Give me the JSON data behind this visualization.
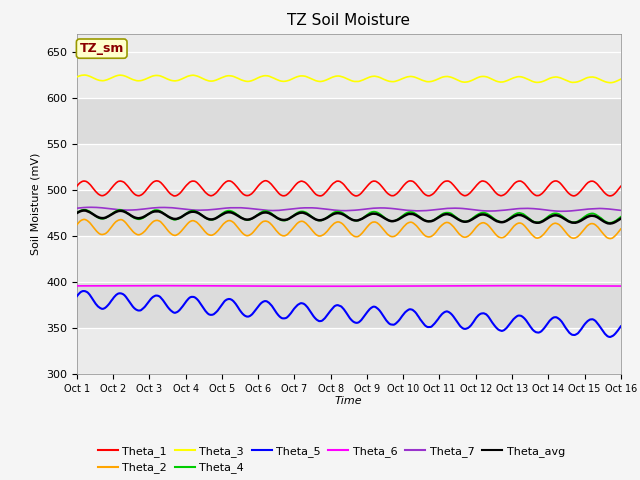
{
  "title": "TZ Soil Moisture",
  "xlabel": "Time",
  "ylabel": "Soil Moisture (mV)",
  "ylim": [
    300,
    670
  ],
  "yticks": [
    300,
    350,
    400,
    450,
    500,
    550,
    600,
    650
  ],
  "x_labels": [
    "Oct 1",
    "Oct 2",
    "Oct 3",
    "Oct 4",
    "Oct 5",
    "Oct 6",
    "Oct 7",
    "Oct 8",
    "Oct 9",
    "Oct 10",
    "Oct 11",
    "Oct 12",
    "Oct 13",
    "Oct 14",
    "Oct 15",
    "Oct 16"
  ],
  "n_points": 720,
  "n_days": 15,
  "annotation_text": "TZ_sm",
  "annotation_color": "#8B0000",
  "annotation_bg": "#FFFFCC",
  "annotation_border": "#999900",
  "plot_bg_light": "#EBEBEB",
  "plot_bg_dark": "#DCDCDC",
  "fig_bg": "#F5F5F5",
  "series": {
    "Theta_1": {
      "color": "#FF0000",
      "base": 502,
      "amp": 8,
      "freq": 1.0,
      "trend": 0.0,
      "noise": 0.8,
      "lw": 1.2
    },
    "Theta_2": {
      "color": "#FFA500",
      "base": 460,
      "amp": 8,
      "freq": 1.0,
      "trend": -0.3,
      "noise": 0.8,
      "lw": 1.2
    },
    "Theta_3": {
      "color": "#FFFF00",
      "base": 622,
      "amp": 3,
      "freq": 1.0,
      "trend": -0.15,
      "noise": 0.5,
      "lw": 1.2
    },
    "Theta_4": {
      "color": "#00CC00",
      "base": 474,
      "amp": 5,
      "freq": 1.0,
      "trend": -0.3,
      "noise": 0.8,
      "lw": 1.2
    },
    "Theta_5": {
      "color": "#0000FF",
      "base": 382,
      "amp": 9,
      "freq": 1.0,
      "trend": -2.2,
      "noise": 1.2,
      "lw": 1.5
    },
    "Theta_6": {
      "color": "#FF00FF",
      "base": 396,
      "amp": 0.3,
      "freq": 0.1,
      "trend": 0.0,
      "noise": 0.05,
      "lw": 1.2
    },
    "Theta_7": {
      "color": "#9933CC",
      "base": 480,
      "amp": 1.5,
      "freq": 0.5,
      "trend": -0.1,
      "noise": 0.2,
      "lw": 1.2
    },
    "Theta_avg": {
      "color": "#000000",
      "base": 474,
      "amp": 4,
      "freq": 1.0,
      "trend": -0.4,
      "noise": 0.6,
      "lw": 1.8
    }
  },
  "series_order": [
    "Theta_6",
    "Theta_7",
    "Theta_2",
    "Theta_3",
    "Theta_4",
    "Theta_avg",
    "Theta_5",
    "Theta_1"
  ],
  "legend_order": [
    "Theta_1",
    "Theta_2",
    "Theta_3",
    "Theta_4",
    "Theta_5",
    "Theta_6",
    "Theta_7",
    "Theta_avg"
  ]
}
